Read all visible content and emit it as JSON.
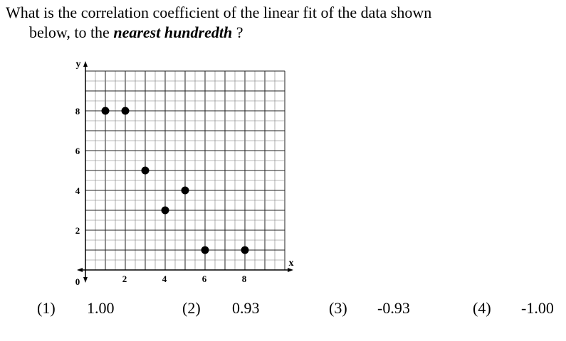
{
  "question": {
    "text_before": "What is the correlation coefficient of the linear fit of the data shown",
    "text_line2_start": "below, to the ",
    "emphasis": "nearest hundredth",
    "text_end": " ?"
  },
  "chart_data": {
    "type": "scatter",
    "xlabel": "x",
    "ylabel": "y",
    "xlim": [
      0,
      10
    ],
    "ylim": [
      0,
      10
    ],
    "grid": true,
    "origin_label": "0",
    "x_ticks": [
      2,
      4,
      6,
      8
    ],
    "y_ticks": [
      2,
      4,
      6,
      8
    ],
    "points": [
      {
        "x": 1,
        "y": 8
      },
      {
        "x": 2,
        "y": 8
      },
      {
        "x": 3,
        "y": 5
      },
      {
        "x": 4,
        "y": 3
      },
      {
        "x": 5,
        "y": 4
      },
      {
        "x": 6,
        "y": 1
      },
      {
        "x": 8,
        "y": 1
      }
    ]
  },
  "choices": [
    {
      "number": "(1)",
      "value": "1.00"
    },
    {
      "number": "(2)",
      "value": "0.93"
    },
    {
      "number": "(3)",
      "value": "-0.93"
    },
    {
      "number": "(4)",
      "value": "-1.00"
    }
  ]
}
